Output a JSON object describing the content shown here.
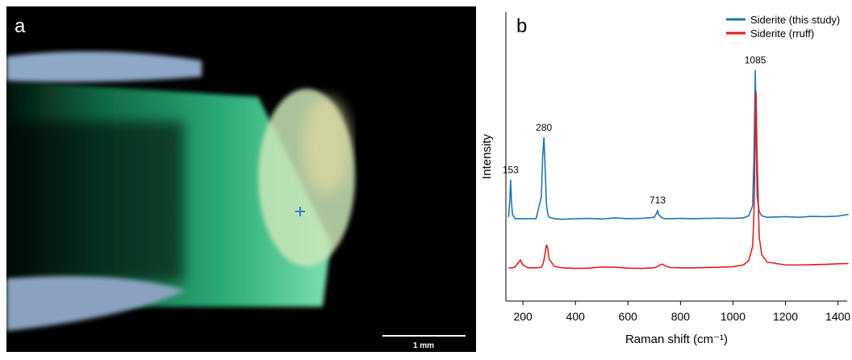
{
  "panel_labels": [
    "a",
    "b"
  ],
  "scale_bar": "1 mm",
  "chart_data": {
    "type": "line",
    "xlabel": "Raman shift (cm⁻¹)",
    "ylabel": "Intensity",
    "x": [
      145,
      150,
      153,
      156,
      160,
      170,
      190,
      200,
      220,
      250,
      270,
      275,
      280,
      285,
      290,
      295,
      300,
      320,
      350,
      400,
      450,
      500,
      550,
      600,
      650,
      700,
      710,
      713,
      716,
      730,
      740,
      760,
      800,
      850,
      900,
      950,
      1000,
      1040,
      1060,
      1075,
      1080,
      1085,
      1088,
      1092,
      1100,
      1110,
      1130,
      1200,
      1250,
      1300,
      1350,
      1400,
      1440
    ],
    "series": [
      {
        "name": "Siderite (this study)",
        "color": "#1f77b4",
        "values": [
          29,
          35,
          42,
          35,
          30,
          28.5,
          28.5,
          28.5,
          28.5,
          28.5,
          36,
          50,
          56.7,
          45,
          33,
          30,
          29,
          28.5,
          28.3,
          28.5,
          28.6,
          28.4,
          28.8,
          28.5,
          28.6,
          29,
          30.5,
          31.5,
          30,
          28.8,
          28.5,
          28.5,
          28.6,
          28.5,
          28.6,
          28.7,
          28.6,
          28.8,
          29.5,
          33,
          50,
          80,
          60,
          36,
          31,
          29.5,
          29,
          29.2,
          29,
          29.3,
          29.2,
          29.4,
          30
        ]
      },
      {
        "name": "Siderite (rruff)",
        "color": "#e0201b",
        "values": [
          11.5,
          11.5,
          11.5,
          11.5,
          11.5,
          11.8,
          14.2,
          12.5,
          11.5,
          11.5,
          11.7,
          12.5,
          14,
          17,
          19.5,
          18,
          14.5,
          12,
          11.5,
          11.3,
          11.4,
          11.8,
          11.7,
          11.4,
          11.3,
          11.5,
          11.8,
          12,
          12.2,
          12.8,
          12.3,
          11.6,
          11.5,
          11.5,
          11.6,
          11.7,
          11.9,
          12.5,
          14,
          19,
          30,
          60,
          72.6,
          50,
          22,
          16,
          13.5,
          12.5,
          12.5,
          12.6,
          12.7,
          12.9,
          13
        ]
      }
    ],
    "peak_labels": [
      153,
      280,
      713,
      1085
    ],
    "xlim": [
      135,
      1435
    ],
    "xticks": [
      200,
      400,
      600,
      800,
      1000,
      1200,
      1400
    ],
    "ylim": [
      0,
      100
    ],
    "legend": "upper right"
  }
}
